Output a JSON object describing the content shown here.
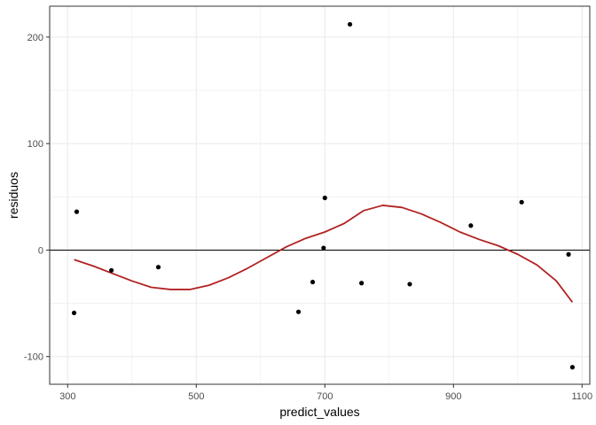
{
  "chart_data": {
    "type": "scatter",
    "title": "",
    "xlabel": "predict_values",
    "ylabel": "residuos",
    "xlim": [
      272,
      1112
    ],
    "ylim": [
      -126,
      229
    ],
    "x_ticks": [
      300,
      500,
      700,
      900,
      1100
    ],
    "y_ticks": [
      -100,
      0,
      100,
      200
    ],
    "x_tick_labels": [
      "300",
      "500",
      "700",
      "900",
      "1100"
    ],
    "y_tick_labels": [
      "-100",
      "0",
      "100",
      "200"
    ],
    "grid": true,
    "theme": "bw",
    "reference_line": {
      "y": 0,
      "color": "#000000"
    },
    "points": [
      {
        "x": 310,
        "y": -59
      },
      {
        "x": 314,
        "y": 36
      },
      {
        "x": 368,
        "y": -19
      },
      {
        "x": 441,
        "y": -16
      },
      {
        "x": 659,
        "y": -58
      },
      {
        "x": 681,
        "y": -30
      },
      {
        "x": 698,
        "y": 2
      },
      {
        "x": 700,
        "y": 49
      },
      {
        "x": 739,
        "y": 212
      },
      {
        "x": 757,
        "y": -31
      },
      {
        "x": 832,
        "y": -32
      },
      {
        "x": 927,
        "y": 23
      },
      {
        "x": 1006,
        "y": 45
      },
      {
        "x": 1079,
        "y": -4
      },
      {
        "x": 1085,
        "y": -110
      }
    ],
    "smooth": {
      "color": "#b22222",
      "x": [
        310,
        340,
        370,
        400,
        430,
        460,
        490,
        520,
        550,
        580,
        610,
        640,
        670,
        700,
        730,
        760,
        790,
        820,
        850,
        880,
        910,
        940,
        970,
        1000,
        1030,
        1060,
        1085
      ],
      "y": [
        -9,
        -15,
        -22,
        -29,
        -35,
        -37,
        -37,
        -33,
        -26,
        -17,
        -7,
        3,
        11,
        17,
        25,
        37,
        42,
        40,
        34,
        26,
        17,
        10,
        4,
        -4,
        -14,
        -29,
        -49
      ]
    },
    "colors": {
      "points": "#000000",
      "grid": "#ebebeb",
      "panel_border": "#333333"
    }
  }
}
